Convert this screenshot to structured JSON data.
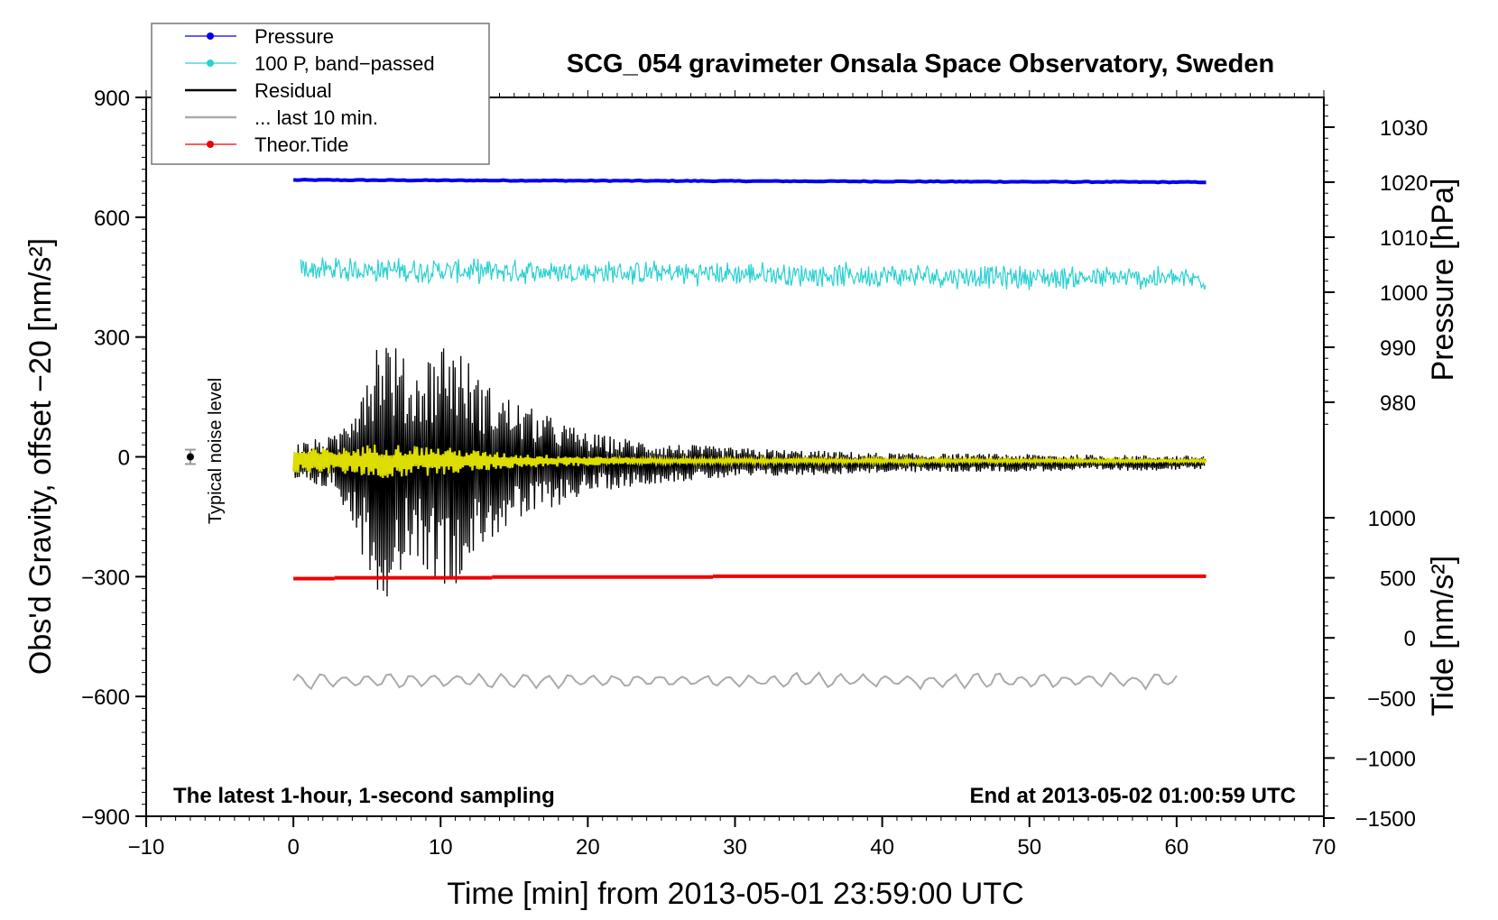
{
  "chart_data": {
    "type": "line",
    "title": "SCG_054 gravimeter Onsala Space Observatory, Sweden",
    "xlabel": "Time [min] from 2013-05-01 23:59:00 UTC",
    "ylabel_left": "Obs'd Gravity, offset −20 [nm/s²]",
    "ylabel_right_pressure": "Pressure [hPa]",
    "ylabel_right_tide": "Tide [nm/s²]",
    "xlim": [
      -10,
      70
    ],
    "ylim_left": [
      -900,
      900
    ],
    "x_ticks": [
      "−10",
      "0",
      "10",
      "20",
      "30",
      "40",
      "50",
      "60",
      "70"
    ],
    "y_ticks_left": [
      "900",
      "600",
      "300",
      "0",
      "−300",
      "−600",
      "−900"
    ],
    "pressure_ticks": [
      "1030",
      "1020",
      "1010",
      "1000",
      "990",
      "980"
    ],
    "tide_ticks": [
      "1000",
      "500",
      "0",
      "−500",
      "−1000",
      "−1500"
    ],
    "note_left": "The latest 1-hour, 1-second sampling",
    "note_right": "End at 2013-05-02 01:00:59 UTC",
    "noise_label": "Typical noise level",
    "noise_marker": {
      "x": -7,
      "y": 0,
      "err": 18
    },
    "legend": [
      {
        "label": "Pressure",
        "color": "#0000ee",
        "dot": true
      },
      {
        "label": "100 P, band−passed",
        "color": "#2ad0d0",
        "dot": true
      },
      {
        "label": "Residual",
        "color": "#000000",
        "dot": false
      },
      {
        "label": "... last 10 min.",
        "color": "#aaaaaa",
        "dot": false
      },
      {
        "label": "Theor.Tide",
        "color": "#ee0000",
        "dot": true
      }
    ],
    "series": [
      {
        "name": "Pressure",
        "color": "#0000ee",
        "x_range": [
          0,
          62
        ],
        "start": 1020.4,
        "end": 1020.0,
        "unit": "hPa"
      },
      {
        "name": "100 P, band−passed",
        "color": "#2ad0d0",
        "x_range": [
          0.5,
          62
        ],
        "level_start": 470,
        "level_end": 445,
        "amplitude": 28
      },
      {
        "name": "Residual",
        "color": "#000000",
        "x_range": [
          0,
          62
        ],
        "level": -15,
        "envelope": [
          {
            "t": 0,
            "a": 50
          },
          {
            "t": 3,
            "a": 70
          },
          {
            "t": 5,
            "a": 260
          },
          {
            "t": 6,
            "a": 360
          },
          {
            "t": 8,
            "a": 230
          },
          {
            "t": 10.5,
            "a": 330
          },
          {
            "t": 13,
            "a": 200
          },
          {
            "t": 16,
            "a": 140
          },
          {
            "t": 20,
            "a": 75
          },
          {
            "t": 25,
            "a": 50
          },
          {
            "t": 30,
            "a": 38
          },
          {
            "t": 40,
            "a": 25
          },
          {
            "t": 50,
            "a": 22
          },
          {
            "t": 62,
            "a": 18
          }
        ]
      },
      {
        "name": "Residual filtered",
        "color": "#dddd00",
        "x_range": [
          0,
          62
        ],
        "level": -10,
        "envelope": [
          {
            "t": 0,
            "a": 30
          },
          {
            "t": 4,
            "a": 35
          },
          {
            "t": 6,
            "a": 45
          },
          {
            "t": 10,
            "a": 35
          },
          {
            "t": 15,
            "a": 18
          },
          {
            "t": 25,
            "a": 7
          },
          {
            "t": 62,
            "a": 4
          }
        ]
      },
      {
        "name": "... last 10 min.",
        "color": "#aaaaaa",
        "x_range": [
          0,
          60
        ],
        "level": -560,
        "amplitude": 22
      },
      {
        "name": "Theor.Tide",
        "color": "#ee0000",
        "steps": [
          {
            "x0": 0,
            "x1": 2.8,
            "y": -305
          },
          {
            "x0": 2.8,
            "x1": 13.5,
            "y": -303
          },
          {
            "x0": 13.5,
            "x1": 28.5,
            "y": -301
          },
          {
            "x0": 28.5,
            "x1": 62,
            "y": -299
          }
        ]
      }
    ]
  }
}
